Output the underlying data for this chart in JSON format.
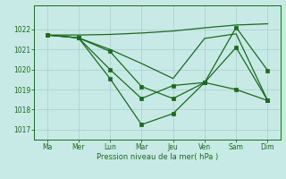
{
  "xlabel": "Pression niveau de la mer( hPa )",
  "x_labels": [
    "Ma",
    "Mer",
    "Lun",
    "Mar",
    "Jeu",
    "Ven",
    "Sam",
    "Dim"
  ],
  "ylim": [
    1016.5,
    1023.2
  ],
  "yticks": [
    1017,
    1018,
    1019,
    1020,
    1021,
    1022
  ],
  "bg_color": "#c8eae6",
  "grid_color": "#a8ccca",
  "line_color": "#1a6b1a",
  "series": [
    {
      "x": [
        0,
        1,
        2,
        3,
        4,
        5,
        6,
        7
      ],
      "y": [
        1021.72,
        1021.72,
        1021.75,
        1021.82,
        1021.92,
        1022.08,
        1022.22,
        1022.28
      ],
      "marker": false,
      "lw": 0.9
    },
    {
      "x": [
        0,
        1,
        2,
        3,
        4,
        5,
        6,
        7
      ],
      "y": [
        1021.72,
        1021.58,
        1021.0,
        1020.3,
        1019.55,
        1021.55,
        1021.78,
        1018.45
      ],
      "marker": false,
      "lw": 0.9
    },
    {
      "x": [
        0,
        1,
        2,
        3,
        4,
        5,
        6,
        7
      ],
      "y": [
        1021.72,
        1021.58,
        1020.0,
        1018.55,
        1019.2,
        1019.35,
        1019.0,
        1018.45
      ],
      "marker": true,
      "lw": 0.9
    },
    {
      "x": [
        0,
        1,
        2,
        3,
        4,
        5,
        6,
        7
      ],
      "y": [
        1021.72,
        1021.58,
        1019.55,
        1017.25,
        1017.8,
        1019.35,
        1022.1,
        1019.95
      ],
      "marker": true,
      "lw": 0.9
    },
    {
      "x": [
        1,
        2,
        3,
        4,
        5,
        6,
        7
      ],
      "y": [
        1021.58,
        1020.9,
        1019.15,
        1018.55,
        1019.35,
        1021.1,
        1018.45
      ],
      "marker": true,
      "lw": 0.9
    }
  ]
}
